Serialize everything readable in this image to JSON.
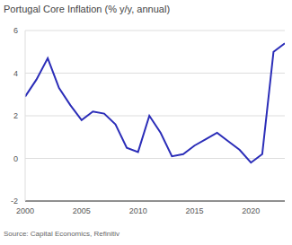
{
  "chart_data": {
    "type": "line",
    "title": "Portugal Core Inflation (% y/y, annual)",
    "source": "Source: Capital Economics, Refinitiv",
    "x": [
      2000,
      2001,
      2002,
      2003,
      2004,
      2005,
      2006,
      2007,
      2008,
      2009,
      2010,
      2011,
      2012,
      2013,
      2014,
      2015,
      2016,
      2017,
      2018,
      2019,
      2020,
      2021,
      2022,
      2023
    ],
    "values": [
      2.9,
      3.7,
      4.7,
      3.3,
      2.5,
      1.8,
      2.2,
      2.1,
      1.6,
      0.5,
      0.3,
      2.0,
      1.2,
      0.1,
      0.2,
      0.6,
      0.9,
      1.2,
      0.8,
      0.4,
      -0.2,
      0.2,
      5.0,
      5.4
    ],
    "color": "#2b2db8",
    "xlim": [
      2000,
      2023
    ],
    "xticks": [
      2000,
      2005,
      2010,
      2015,
      2020
    ],
    "ylim": [
      -2,
      6
    ],
    "yticks": [
      -2,
      0,
      2,
      4,
      6
    ],
    "grid": true
  }
}
